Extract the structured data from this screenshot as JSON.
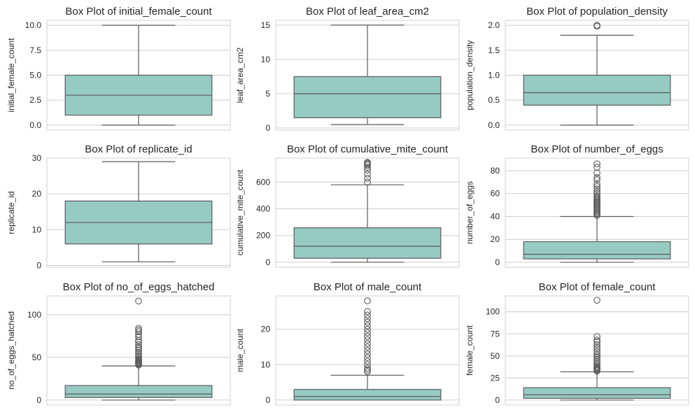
{
  "colors": {
    "box_fill": "#96cbc2",
    "line": "#5a5a5a",
    "grid": "#cccccc",
    "frame": "#d0d0d0",
    "text": "#262626"
  },
  "chart_data": [
    {
      "type": "box",
      "title": "Box Plot of initial_female_count",
      "ylabel": "initial_female_count",
      "ylim": [
        -0.5,
        10.5
      ],
      "yticks": [
        0.0,
        2.5,
        5.0,
        7.5,
        10.0
      ],
      "ytick_labels": [
        "0.0",
        "2.5",
        "5.0",
        "7.5",
        "10.0"
      ],
      "grid": true,
      "box": {
        "whisker_low": 0,
        "q1": 1,
        "median": 3,
        "q3": 5,
        "whisker_high": 10
      },
      "outliers": []
    },
    {
      "type": "box",
      "title": "Box Plot of leaf_area_cm2",
      "ylabel": "leaf_area_cm2",
      "ylim": [
        -0.3,
        15.7
      ],
      "yticks": [
        0,
        5,
        10,
        15
      ],
      "ytick_labels": [
        "0",
        "5",
        "10",
        "15"
      ],
      "grid": true,
      "box": {
        "whisker_low": 0.5,
        "q1": 1.5,
        "median": 5,
        "q3": 7.5,
        "whisker_high": 15
      },
      "outliers": []
    },
    {
      "type": "box",
      "title": "Box Plot of population_density",
      "ylabel": "population_density",
      "ylim": [
        -0.1,
        2.1
      ],
      "yticks": [
        0.0,
        0.5,
        1.0,
        1.5,
        2.0
      ],
      "ytick_labels": [
        "0.0",
        "0.5",
        "1.0",
        "1.5",
        "2.0"
      ],
      "grid": true,
      "box": {
        "whisker_low": 0,
        "q1": 0.4,
        "median": 0.65,
        "q3": 1.0,
        "whisker_high": 1.8
      },
      "outliers": [
        1.98,
        2.0
      ]
    },
    {
      "type": "box",
      "title": "Box Plot of replicate_id",
      "ylabel": "replicate_id",
      "ylim": [
        -0.5,
        30.0
      ],
      "yticks": [
        0,
        10,
        20,
        30
      ],
      "ytick_labels": [
        "0",
        "10",
        "20",
        "30"
      ],
      "grid": true,
      "box": {
        "whisker_low": 1,
        "q1": 6,
        "median": 12,
        "q3": 18,
        "whisker_high": 29
      },
      "outliers": []
    },
    {
      "type": "box",
      "title": "Box Plot of cumulative_mite_count",
      "ylabel": "cumulative_mite_count",
      "ylim": [
        -37,
        780
      ],
      "yticks": [
        0,
        200,
        400,
        600
      ],
      "ytick_labels": [
        "0",
        "200",
        "400",
        "600"
      ],
      "grid": true,
      "box": {
        "whisker_low": 0,
        "q1": 30,
        "median": 120,
        "q3": 258,
        "whisker_high": 580
      },
      "outliers": [
        600,
        630,
        660,
        690,
        710,
        725,
        735,
        742,
        748
      ]
    },
    {
      "type": "box",
      "title": "Box Plot of number_of_eggs",
      "ylabel": "number_of_eggs",
      "ylim": [
        -4.3,
        91
      ],
      "yticks": [
        0,
        20,
        40,
        60,
        80
      ],
      "ytick_labels": [
        "0",
        "20",
        "40",
        "60",
        "80"
      ],
      "grid": true,
      "box": {
        "whisker_low": 0,
        "q1": 3,
        "median": 7,
        "q3": 18,
        "whisker_high": 40
      },
      "outliers": [
        41,
        42,
        43,
        44,
        45,
        46,
        47,
        48,
        49,
        50,
        51,
        52,
        53,
        54,
        55,
        56,
        57,
        58,
        60,
        62,
        64,
        66,
        68,
        72,
        74,
        78,
        83,
        86
      ]
    },
    {
      "type": "box",
      "title": "Box Plot of no_of_eggs_hatched",
      "ylabel": "no_of_eggs_hatched",
      "ylim": [
        -5.8,
        122
      ],
      "yticks": [
        0,
        50,
        100
      ],
      "ytick_labels": [
        "0",
        "50",
        "100"
      ],
      "grid": true,
      "box": {
        "whisker_low": 0,
        "q1": 3,
        "median": 7,
        "q3": 17,
        "whisker_high": 40
      },
      "outliers": [
        41,
        42,
        43,
        44,
        45,
        46,
        47,
        48,
        50,
        52,
        54,
        56,
        58,
        60,
        62,
        65,
        68,
        70,
        74,
        77,
        80,
        82,
        84,
        116
      ]
    },
    {
      "type": "box",
      "title": "Box Plot of male_count",
      "ylabel": "male_count",
      "ylim": [
        -1.4,
        29.4
      ],
      "yticks": [
        0,
        10,
        20
      ],
      "ytick_labels": [
        "0",
        "10",
        "20"
      ],
      "grid": true,
      "box": {
        "whisker_low": 0,
        "q1": 0,
        "median": 1,
        "q3": 3,
        "whisker_high": 7
      },
      "outliers": [
        8,
        8.5,
        9,
        10,
        11,
        12,
        13,
        14,
        15,
        16,
        17,
        18,
        19,
        20,
        21,
        22,
        23,
        24,
        25,
        28
      ]
    },
    {
      "type": "box",
      "title": "Box Plot of female_count",
      "ylabel": "female_count",
      "ylim": [
        -5.6,
        118
      ],
      "yticks": [
        0,
        25,
        50,
        75,
        100
      ],
      "ytick_labels": [
        "0",
        "25",
        "50",
        "75",
        "100"
      ],
      "grid": true,
      "box": {
        "whisker_low": 0,
        "q1": 2,
        "median": 6,
        "q3": 14,
        "whisker_high": 32
      },
      "outliers": [
        33,
        34,
        35,
        36,
        37,
        38,
        40,
        42,
        44,
        46,
        48,
        50,
        52,
        55,
        58,
        60,
        63,
        66,
        68,
        72,
        113
      ]
    }
  ]
}
